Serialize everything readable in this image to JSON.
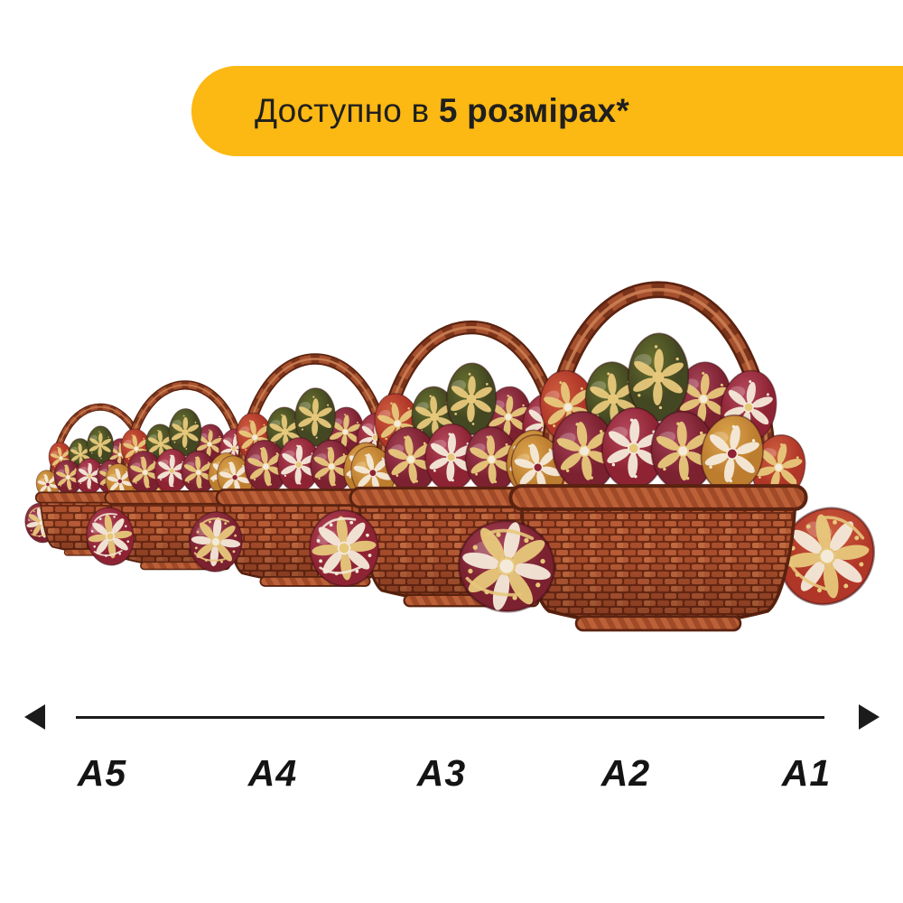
{
  "banner": {
    "text_regular": "Доступно в ",
    "text_bold": "5 розмірах*"
  },
  "size_scale": {
    "labels": [
      "A5",
      "A4",
      "A3",
      "A2",
      "A1"
    ]
  },
  "theme": {
    "banner_bg": "#FCB813",
    "banner_text": "#1F1F1F",
    "axis_color": "#1B1B1B",
    "background": "#FFFFFF"
  },
  "illustration": {
    "subject": "5 wicker baskets with pysanky Easter eggs, smallest to largest",
    "colors": {
      "basket_outline": "#5A2310",
      "weave_dark": "#6E2B15",
      "weave_mid": "#A84E2C",
      "weave_mid2": "#B65B36",
      "weave_light": "#C06A40",
      "handle_mid": "#A5502E",
      "handle_light": "#CB7E52",
      "rope_a": "#A04A28",
      "rope_b": "#BC6038",
      "egg_burgundy": "#7C2130",
      "egg_burgundy_hi": "#A64459",
      "egg_darkred": "#8E2334",
      "egg_darkred_hi": "#B54A5E",
      "egg_red": "#B03627",
      "egg_red_hi": "#CE5E40",
      "egg_green": "#434722",
      "egg_green_hi": "#68702F",
      "egg_gold": "#BD7D2F",
      "egg_gold_hi": "#DDA74F",
      "deco_gold": "#E7C87B",
      "deco_cream": "#F4EADA"
    }
  }
}
